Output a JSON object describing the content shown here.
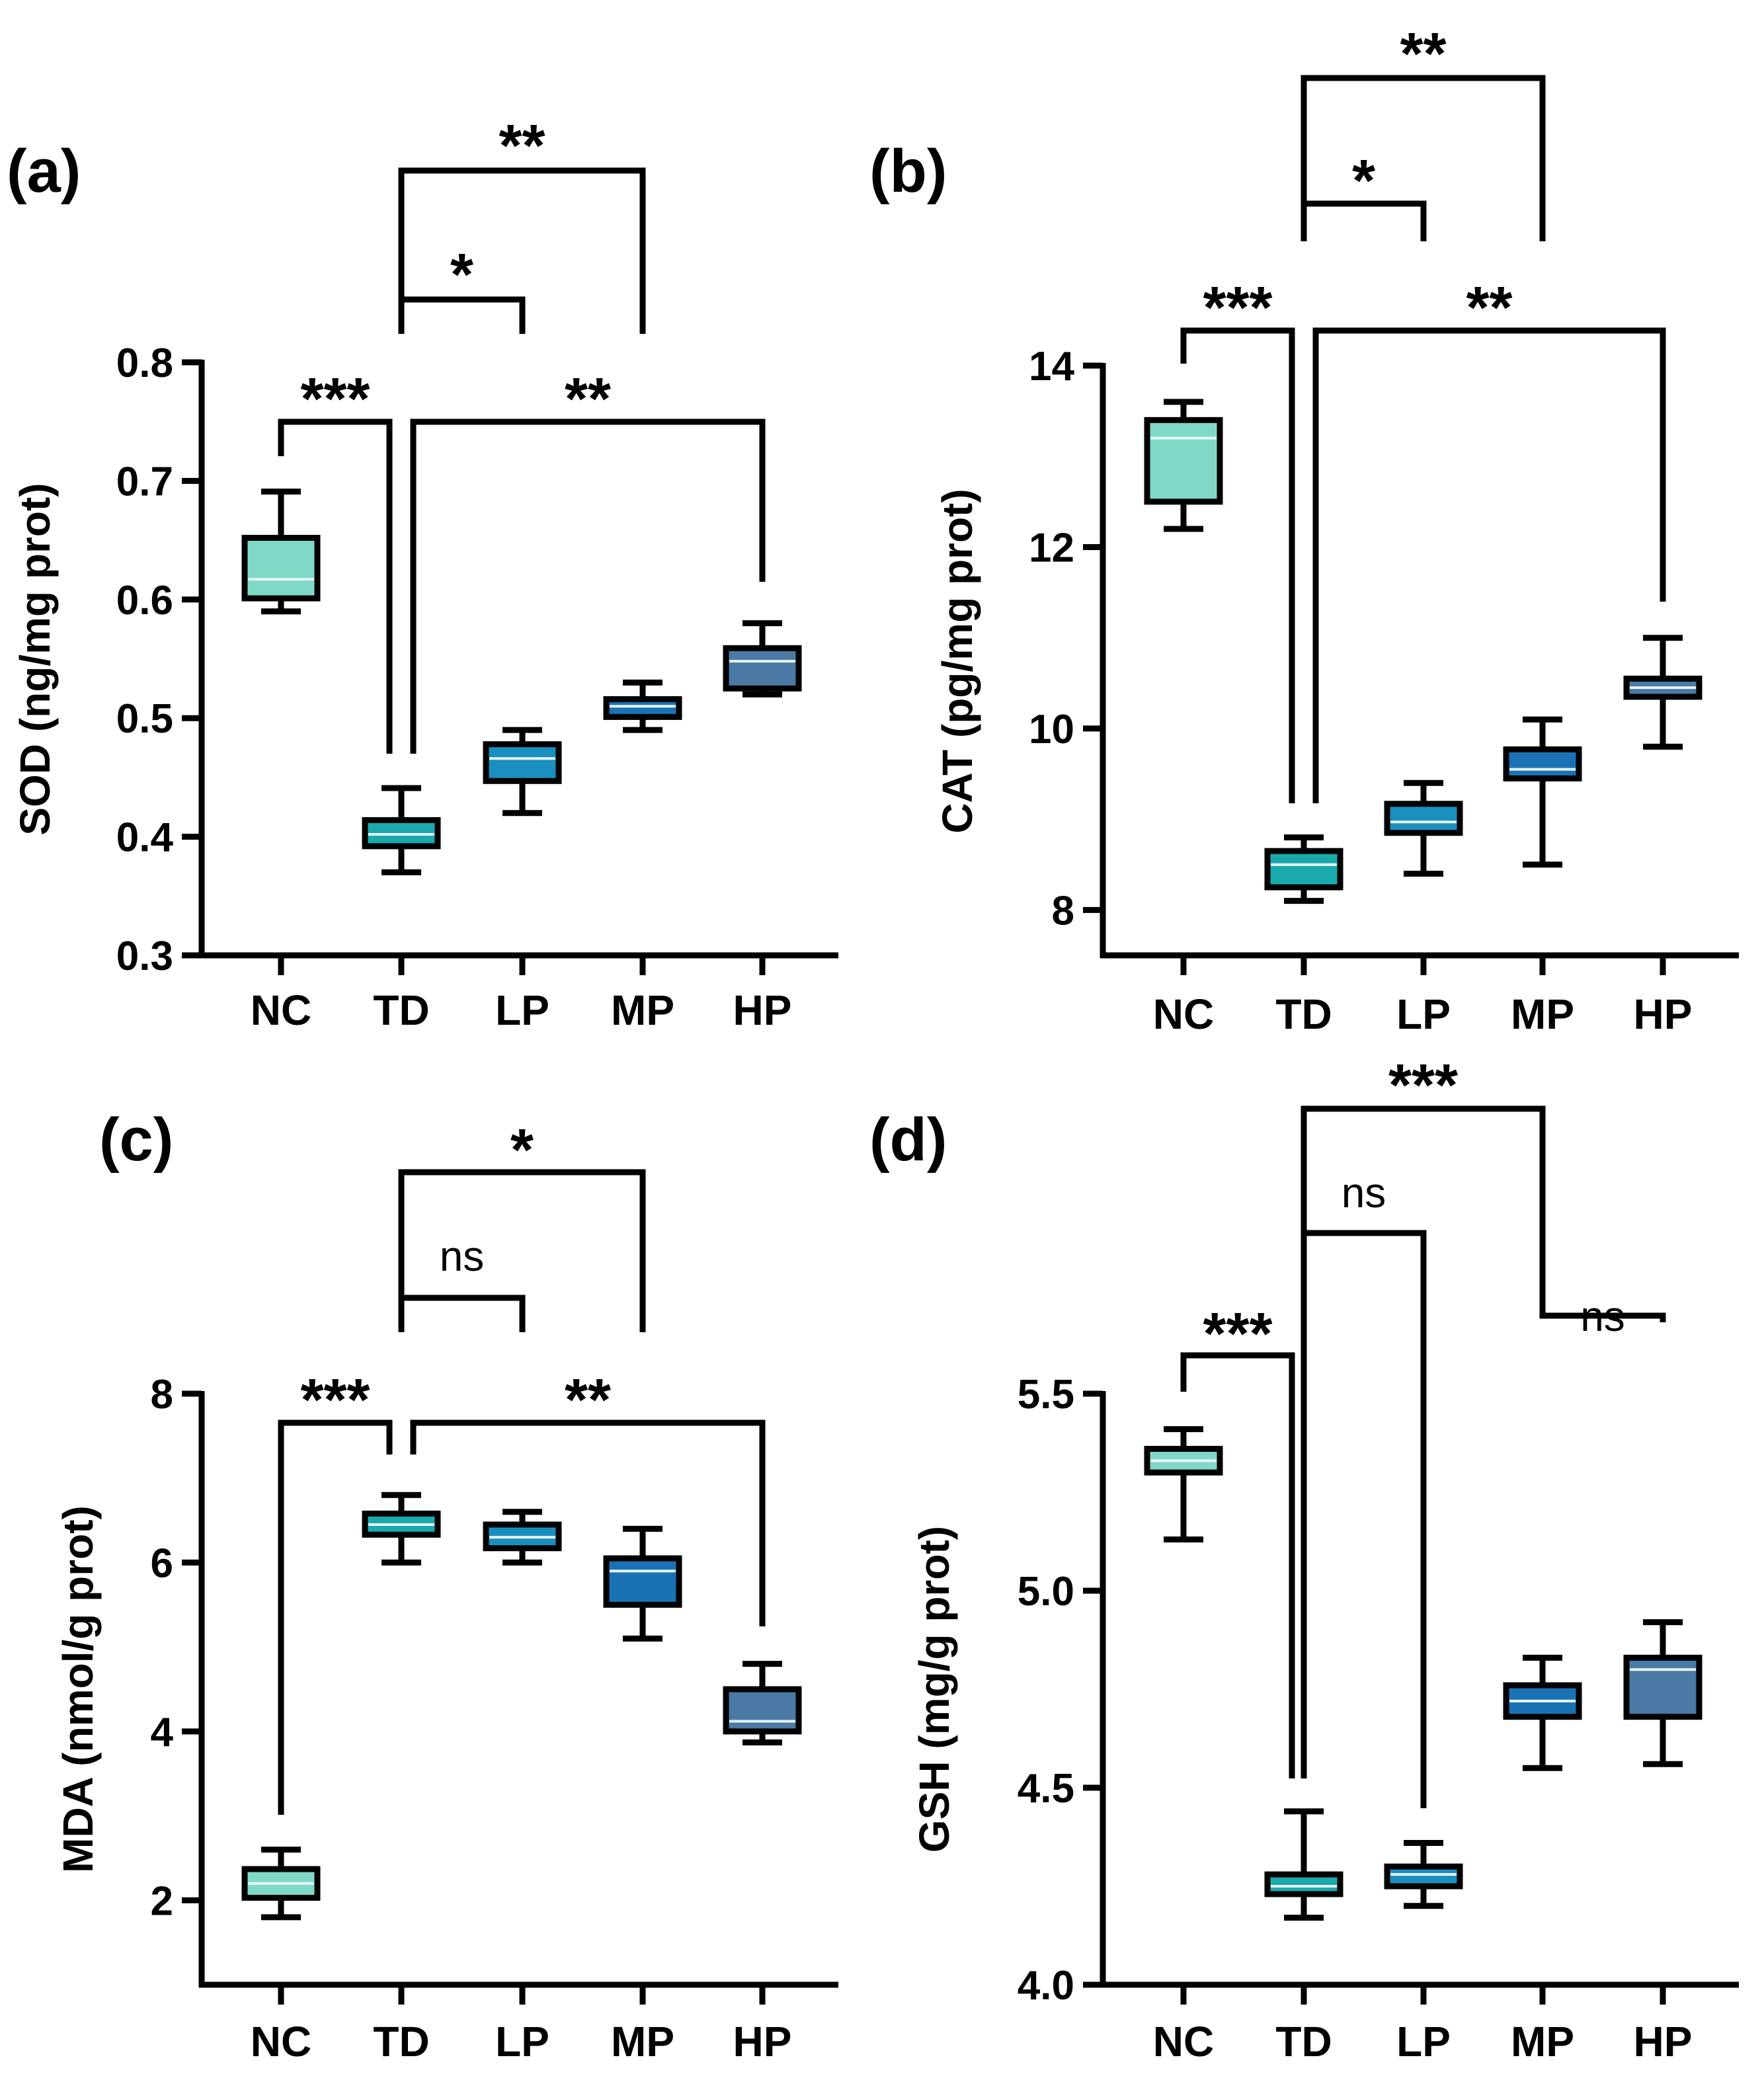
{
  "figure": {
    "categories": [
      "NC",
      "TD",
      "LP",
      "MP",
      "HP"
    ],
    "colors": {
      "NC": "#7fd9c6",
      "TD": "#1aa9ad",
      "LP": "#1a8fc0",
      "MP": "#1a72b4",
      "HP": "#4a7aa5",
      "ink": "#000000"
    }
  },
  "chart_data": [
    {
      "panel_label": "(a)",
      "type": "box",
      "ylabel": "SOD (ng/mg prot)",
      "ylim": [
        0.3,
        0.8
      ],
      "yticks": [
        0.3,
        0.4,
        0.5,
        0.6,
        0.7,
        0.8
      ],
      "ytick_labels": [
        "0.3",
        "0.4",
        "0.5",
        "0.6",
        "0.7",
        "0.8"
      ],
      "categories": [
        "NC",
        "TD",
        "LP",
        "MP",
        "HP"
      ],
      "boxes": [
        {
          "group": "NC",
          "min": 0.59,
          "q1": 0.601,
          "median": 0.617,
          "q3": 0.652,
          "max": 0.691
        },
        {
          "group": "TD",
          "min": 0.37,
          "q1": 0.392,
          "median": 0.402,
          "q3": 0.414,
          "max": 0.441
        },
        {
          "group": "LP",
          "min": 0.42,
          "q1": 0.447,
          "median": 0.466,
          "q3": 0.478,
          "max": 0.49
        },
        {
          "group": "MP",
          "min": 0.49,
          "q1": 0.501,
          "median": 0.51,
          "q3": 0.516,
          "max": 0.53
        },
        {
          "group": "HP",
          "min": 0.52,
          "q1": 0.525,
          "median": 0.548,
          "q3": 0.559,
          "max": 0.58
        }
      ],
      "comparisons": [
        {
          "from": "NC",
          "to": "TD",
          "label": "***"
        },
        {
          "from": "TD",
          "to": "HP",
          "label": "**"
        },
        {
          "from": "TD",
          "to": "LP",
          "label": "*"
        },
        {
          "from": "TD",
          "to": "MP",
          "label": "**"
        }
      ]
    },
    {
      "panel_label": "(b)",
      "type": "box",
      "ylabel": "CAT (pg/mg prot)",
      "ylim": [
        7.5,
        14
      ],
      "yticks": [
        8,
        10,
        12,
        14
      ],
      "ytick_labels": [
        "8",
        "10",
        "12",
        "14"
      ],
      "categories": [
        "NC",
        "TD",
        "LP",
        "MP",
        "HP"
      ],
      "boxes": [
        {
          "group": "NC",
          "min": 12.2,
          "q1": 12.5,
          "median": 13.2,
          "q3": 13.4,
          "max": 13.6
        },
        {
          "group": "TD",
          "min": 8.1,
          "q1": 8.25,
          "median": 8.5,
          "q3": 8.65,
          "max": 8.8
        },
        {
          "group": "LP",
          "min": 8.4,
          "q1": 8.85,
          "median": 8.97,
          "q3": 9.17,
          "max": 9.4
        },
        {
          "group": "MP",
          "min": 8.5,
          "q1": 9.45,
          "median": 9.55,
          "q3": 9.77,
          "max": 10.1
        },
        {
          "group": "HP",
          "min": 9.8,
          "q1": 10.35,
          "median": 10.45,
          "q3": 10.55,
          "max": 11.0
        }
      ],
      "comparisons": [
        {
          "from": "NC",
          "to": "TD",
          "label": "***"
        },
        {
          "from": "TD",
          "to": "HP",
          "label": "**"
        },
        {
          "from": "TD",
          "to": "LP",
          "label": "*"
        },
        {
          "from": "TD",
          "to": "MP",
          "label": "**"
        }
      ]
    },
    {
      "panel_label": "(c)",
      "type": "box",
      "ylabel": "MDA (nmol/g prot)",
      "ylim": [
        1,
        8
      ],
      "yticks": [
        2,
        4,
        6,
        8
      ],
      "ytick_labels": [
        "2",
        "4",
        "6",
        "8"
      ],
      "categories": [
        "NC",
        "TD",
        "LP",
        "MP",
        "HP"
      ],
      "boxes": [
        {
          "group": "NC",
          "min": 1.8,
          "q1": 2.03,
          "median": 2.2,
          "q3": 2.37,
          "max": 2.6
        },
        {
          "group": "TD",
          "min": 6.0,
          "q1": 6.33,
          "median": 6.45,
          "q3": 6.58,
          "max": 6.8
        },
        {
          "group": "LP",
          "min": 6.0,
          "q1": 6.17,
          "median": 6.3,
          "q3": 6.45,
          "max": 6.6
        },
        {
          "group": "MP",
          "min": 5.1,
          "q1": 5.5,
          "median": 5.9,
          "q3": 6.05,
          "max": 6.4
        },
        {
          "group": "HP",
          "min": 3.87,
          "q1": 4.0,
          "median": 4.12,
          "q3": 4.5,
          "max": 4.8
        }
      ],
      "comparisons": [
        {
          "from": "NC",
          "to": "TD",
          "label": "***"
        },
        {
          "from": "TD",
          "to": "HP",
          "label": "**"
        },
        {
          "from": "TD",
          "to": "LP",
          "label": "ns"
        },
        {
          "from": "TD",
          "to": "MP",
          "label": "*"
        }
      ]
    },
    {
      "panel_label": "(d)",
      "type": "box",
      "ylabel": "GSH (mg/g prot)",
      "ylim": [
        4.0,
        5.5
      ],
      "yticks": [
        4.0,
        4.5,
        5.0,
        5.5
      ],
      "ytick_labels": [
        "4.0",
        "4.5",
        "5.0",
        "5.5"
      ],
      "categories": [
        "NC",
        "TD",
        "LP",
        "MP",
        "HP"
      ],
      "boxes": [
        {
          "group": "NC",
          "min": 5.13,
          "q1": 5.3,
          "median": 5.33,
          "q3": 5.36,
          "max": 5.41
        },
        {
          "group": "TD",
          "min": 4.17,
          "q1": 4.23,
          "median": 4.25,
          "q3": 4.28,
          "max": 4.44
        },
        {
          "group": "LP",
          "min": 4.2,
          "q1": 4.25,
          "median": 4.28,
          "q3": 4.3,
          "max": 4.36
        },
        {
          "group": "MP",
          "min": 4.55,
          "q1": 4.68,
          "median": 4.72,
          "q3": 4.76,
          "max": 4.83
        },
        {
          "group": "HP",
          "min": 4.56,
          "q1": 4.68,
          "median": 4.8,
          "q3": 4.83,
          "max": 4.92
        }
      ],
      "comparisons": [
        {
          "from": "NC",
          "to": "TD",
          "label": "***"
        },
        {
          "from": "TD",
          "to": "LP",
          "label": "ns"
        },
        {
          "from": "TD",
          "to": "MP",
          "label": "***"
        },
        {
          "from": "MP",
          "to": "HP",
          "label": "ns"
        }
      ]
    }
  ]
}
